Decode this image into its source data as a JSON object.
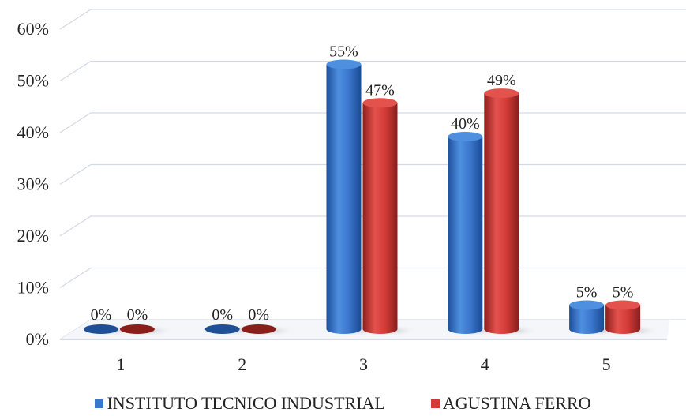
{
  "chart_data": {
    "type": "bar",
    "title": "",
    "xlabel": "",
    "ylabel": "",
    "categories": [
      "1",
      "2",
      "3",
      "4",
      "5"
    ],
    "series": [
      {
        "name": "INSTITUTO TECNICO INDUSTRIAL",
        "values": [
          0,
          0,
          55,
          40,
          5
        ],
        "labels": [
          "0%",
          "0%",
          "55%",
          "40%",
          "5%"
        ],
        "color": "#3a76cc"
      },
      {
        "name": "AGUSTINA FERRO",
        "values": [
          0,
          0,
          47,
          49,
          5
        ],
        "labels": [
          "0%",
          "0%",
          "47%",
          "49%",
          "5%"
        ],
        "color": "#d23a36"
      }
    ],
    "y_ticks": [
      "0%",
      "10%",
      "20%",
      "30%",
      "40%",
      "50%",
      "60%"
    ],
    "ylim": [
      0,
      60
    ],
    "grid": true,
    "legend_position": "bottom",
    "style": "3d-cylinder"
  }
}
